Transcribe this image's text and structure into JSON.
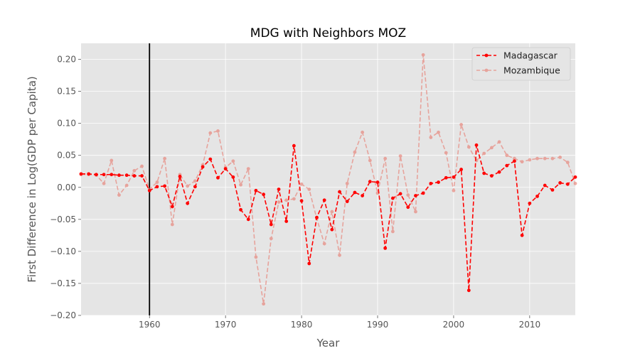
{
  "chart_data": {
    "type": "line",
    "title": "MDG with Neighbors MOZ",
    "xlabel": "Year",
    "ylabel": "First Difference in Log(GDP per Capita)",
    "xlim": [
      1951,
      2016
    ],
    "ylim": [
      -0.2,
      0.225
    ],
    "xticks": [
      1960,
      1970,
      1980,
      1990,
      2000,
      2010
    ],
    "yticks": [
      -0.2,
      -0.15,
      -0.1,
      -0.05,
      0.0,
      0.05,
      0.1,
      0.15,
      0.2
    ],
    "ytick_labels": [
      "−0.20",
      "−0.15",
      "−0.10",
      "−0.05",
      "0.00",
      "0.05",
      "0.10",
      "0.15",
      "0.20"
    ],
    "grid": true,
    "legend_position": "top-right",
    "vline_x": 1960,
    "x": [
      1951,
      1952,
      1953,
      1954,
      1955,
      1956,
      1957,
      1958,
      1959,
      1960,
      1961,
      1962,
      1963,
      1964,
      1965,
      1966,
      1967,
      1968,
      1969,
      1970,
      1971,
      1972,
      1973,
      1974,
      1975,
      1976,
      1977,
      1978,
      1979,
      1980,
      1981,
      1982,
      1983,
      1984,
      1985,
      1986,
      1987,
      1988,
      1989,
      1990,
      1991,
      1992,
      1993,
      1994,
      1995,
      1996,
      1997,
      1998,
      1999,
      2000,
      2001,
      2002,
      2003,
      2004,
      2005,
      2006,
      2007,
      2008,
      2009,
      2010,
      2011,
      2012,
      2013,
      2014,
      2015,
      2016
    ],
    "series": [
      {
        "name": "Madagascar",
        "color": "#ff0000",
        "alpha": 1.0,
        "values": [
          0.021,
          0.021,
          0.02,
          0.02,
          0.02,
          0.019,
          0.019,
          0.018,
          0.018,
          -0.005,
          0.001,
          0.002,
          -0.03,
          0.017,
          -0.025,
          0.001,
          0.032,
          0.044,
          0.015,
          0.029,
          0.016,
          -0.035,
          -0.05,
          -0.005,
          -0.011,
          -0.058,
          -0.003,
          -0.053,
          0.065,
          -0.021,
          -0.119,
          -0.047,
          -0.02,
          -0.066,
          -0.007,
          -0.022,
          -0.008,
          -0.013,
          0.009,
          0.008,
          -0.095,
          -0.017,
          -0.01,
          -0.031,
          -0.013,
          -0.009,
          0.006,
          0.008,
          0.015,
          0.016,
          0.028,
          -0.161,
          0.066,
          0.022,
          0.018,
          0.024,
          0.034,
          0.041,
          -0.075,
          -0.025,
          -0.014,
          0.003,
          -0.004,
          0.007,
          0.005,
          0.016
        ]
      },
      {
        "name": "Mozambique",
        "color": "#e8786c",
        "alpha": 0.6,
        "values": [
          0.02,
          0.02,
          0.019,
          0.006,
          0.042,
          -0.012,
          0.003,
          0.026,
          0.033,
          -0.003,
          0.008,
          0.045,
          -0.058,
          0.02,
          0.002,
          0.01,
          0.035,
          0.085,
          0.088,
          0.031,
          0.041,
          0.004,
          0.029,
          -0.109,
          -0.182,
          -0.08,
          -0.023,
          -0.02,
          -0.018,
          0.005,
          -0.003,
          -0.049,
          -0.088,
          -0.038,
          -0.106,
          0.006,
          0.055,
          0.086,
          0.042,
          -0.009,
          0.045,
          -0.069,
          0.049,
          -0.012,
          -0.038,
          0.207,
          0.078,
          0.086,
          0.054,
          -0.005,
          0.098,
          0.063,
          0.042,
          0.053,
          0.062,
          0.071,
          0.05,
          0.045,
          0.04,
          0.043,
          0.045,
          0.045,
          0.045,
          0.047,
          0.039,
          0.006
        ]
      }
    ]
  }
}
